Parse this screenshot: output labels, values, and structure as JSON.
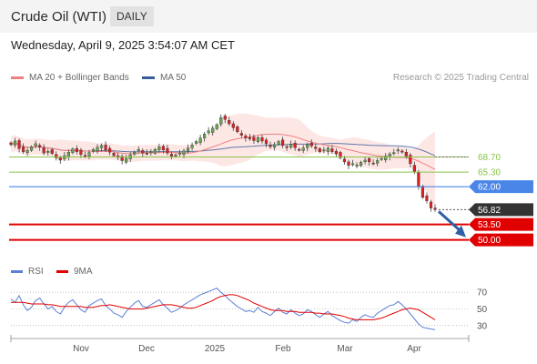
{
  "header": {
    "title": "Crude Oil (WTI)",
    "timeframe": "DAILY"
  },
  "timestamp": "Wednesday, April 9, 2025 3:54:07 AM CET",
  "legend": {
    "ma20_label": "MA 20 + Bollinger Bands",
    "ma50_label": "MA 50"
  },
  "copyright": "Research © 2025 Trading Central",
  "rsi_legend": {
    "rsi_label": "RSI",
    "ma_label": "9MA"
  },
  "colors": {
    "ma20": "#f08080",
    "ma50": "#3a5a9a",
    "band_fill": "#fde3e0",
    "candle_up": "#6aa84f",
    "candle_down": "#e02020",
    "resistance": "#8bc34a",
    "pivot": "#4a86e8",
    "support": "#e00000",
    "current": "#333333",
    "rsi": "#5b7fd6",
    "rsi_ma": "#e00000",
    "arrow": "#2e5fa3"
  },
  "chart_data": {
    "type": "candlestick",
    "instrument": "Crude Oil (WTI)",
    "timeframe": "daily",
    "x_ticks": [
      "Nov",
      "Dec",
      "2025",
      "Feb",
      "Mar",
      "Apr"
    ],
    "ylim": [
      45,
      84
    ],
    "levels": [
      {
        "value": 68.7,
        "label": "68.70",
        "kind": "resistance"
      },
      {
        "value": 65.3,
        "label": "65.30",
        "kind": "resistance"
      },
      {
        "value": 62.0,
        "label": "62.00",
        "kind": "pivot"
      },
      {
        "value": 56.82,
        "label": "56.82",
        "kind": "current"
      },
      {
        "value": 53.5,
        "label": "53.50",
        "kind": "support"
      },
      {
        "value": 50.0,
        "label": "50.00",
        "kind": "support"
      }
    ],
    "closes": [
      71.5,
      72.3,
      70.6,
      69.9,
      70.2,
      71.0,
      71.7,
      70.9,
      69.6,
      70.0,
      69.5,
      68.5,
      68.0,
      69.0,
      69.8,
      70.5,
      69.9,
      69.3,
      68.9,
      69.7,
      70.4,
      70.9,
      71.3,
      70.3,
      69.8,
      69.0,
      68.6,
      67.9,
      68.4,
      69.2,
      69.8,
      70.4,
      69.6,
      69.5,
      69.9,
      70.4,
      71.0,
      70.3,
      69.6,
      68.9,
      69.2,
      69.6,
      70.1,
      70.7,
      71.4,
      72.2,
      73.0,
      73.9,
      74.6,
      75.2,
      76.0,
      77.6,
      77.2,
      76.2,
      75.3,
      74.4,
      73.6,
      73.0,
      72.8,
      72.4,
      73.1,
      72.3,
      71.7,
      71.0,
      71.5,
      72.2,
      71.3,
      70.9,
      71.6,
      70.8,
      70.3,
      70.7,
      71.5,
      71.2,
      70.6,
      69.9,
      70.3,
      70.7,
      69.9,
      69.4,
      68.5,
      67.6,
      66.8,
      67.2,
      66.9,
      67.5,
      68.0,
      67.6,
      67.3,
      67.9,
      68.4,
      68.9,
      69.4,
      69.7,
      70.3,
      69.8,
      68.9,
      67.2,
      65.3,
      62.0,
      59.6,
      58.8,
      57.2,
      56.82
    ],
    "rsi": {
      "ylim": [
        20,
        80
      ],
      "ticks": [
        70,
        50,
        30
      ],
      "values": [
        62,
        58,
        66,
        55,
        48,
        52,
        60,
        63,
        56,
        50,
        53,
        47,
        44,
        52,
        58,
        61,
        55,
        49,
        46,
        54,
        57,
        60,
        62,
        54,
        50,
        45,
        43,
        40,
        47,
        52,
        57,
        60,
        53,
        52,
        55,
        58,
        61,
        55,
        51,
        46,
        48,
        51,
        55,
        58,
        61,
        64,
        67,
        69,
        71,
        73,
        75,
        70,
        66,
        61,
        57,
        53,
        50,
        47,
        48,
        46,
        52,
        47,
        45,
        42,
        47,
        51,
        46,
        44,
        49,
        45,
        42,
        44,
        49,
        47,
        43,
        40,
        44,
        47,
        42,
        39,
        36,
        34,
        33,
        37,
        35,
        40,
        43,
        41,
        40,
        45,
        48,
        51,
        54,
        55,
        59,
        55,
        50,
        44,
        38,
        32,
        28,
        27,
        26,
        25
      ],
      "ma9": [
        58,
        58,
        58,
        58,
        57,
        56,
        56,
        56,
        56,
        55,
        55,
        54,
        53,
        53,
        53,
        53,
        53,
        53,
        52,
        52,
        52,
        53,
        54,
        54,
        55,
        54,
        53,
        52,
        51,
        50,
        50,
        50,
        50,
        51,
        52,
        53,
        54,
        55,
        55,
        55,
        54,
        53,
        52,
        51,
        51,
        52,
        54,
        56,
        58,
        60,
        63,
        65,
        66,
        67,
        67,
        66,
        64,
        62,
        60,
        57,
        55,
        53,
        51,
        49,
        48,
        48,
        48,
        47,
        47,
        47,
        46,
        46,
        46,
        46,
        45,
        45,
        44,
        44,
        44,
        43,
        42,
        41,
        39,
        38,
        37,
        37,
        37,
        37,
        37,
        38,
        39,
        41,
        43,
        45,
        47,
        49,
        50,
        51,
        50,
        49,
        46,
        43,
        40,
        37
      ]
    }
  }
}
